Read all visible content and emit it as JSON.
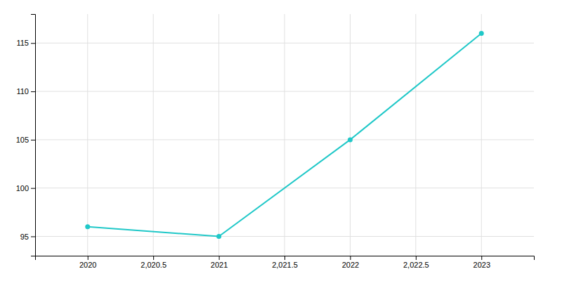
{
  "chart_data": {
    "type": "line",
    "x": [
      2020,
      2021,
      2022,
      2023
    ],
    "values": [
      96,
      95,
      105,
      116
    ],
    "color": "#20C8C8",
    "marker": "circle",
    "xlim": [
      2019.6,
      2023.4
    ],
    "ylim": [
      93.0,
      118.0
    ],
    "xticks": [
      2020,
      {
        "value": 2020.5,
        "label": "2,020.5"
      },
      2021,
      {
        "value": 2021.5,
        "label": "2,021.5"
      },
      2022,
      {
        "value": 2022.5,
        "label": "2,022.5"
      },
      2023
    ],
    "yticks": [
      95,
      100,
      105,
      110,
      115
    ],
    "grid": true
  }
}
